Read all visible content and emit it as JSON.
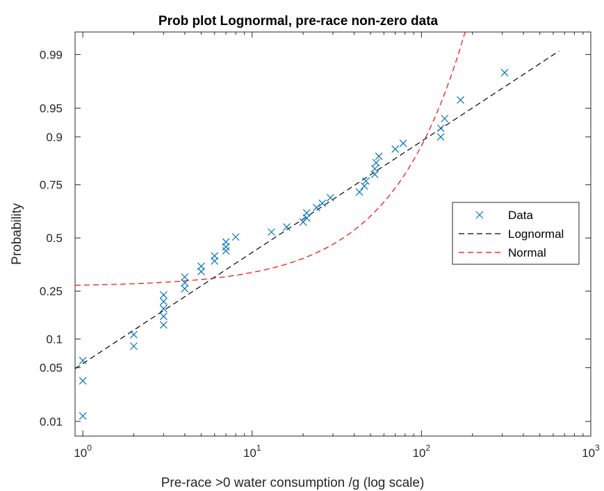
{
  "chart_data": {
    "type": "scatter",
    "title": "Prob plot Lognormal, pre-race non-zero data",
    "xlabel": "Pre-race >0 water consumption /g (log scale)",
    "ylabel": "Probability",
    "x_scale": "log",
    "y_scale": "normal-probability",
    "xlim": [
      0.9,
      1000
    ],
    "ylim": [
      0.006,
      0.9955
    ],
    "x_ticks": [
      {
        "value": 1,
        "base": "10",
        "exp": "0"
      },
      {
        "value": 10,
        "base": "10",
        "exp": "1"
      },
      {
        "value": 100,
        "base": "10",
        "exp": "2"
      },
      {
        "value": 1000,
        "base": "10",
        "exp": "3"
      }
    ],
    "y_ticks": [
      {
        "value": 0.01,
        "label": "0.01"
      },
      {
        "value": 0.05,
        "label": "0.05"
      },
      {
        "value": 0.1,
        "label": "0.1"
      },
      {
        "value": 0.25,
        "label": "0.25"
      },
      {
        "value": 0.5,
        "label": "0.5"
      },
      {
        "value": 0.75,
        "label": "0.75"
      },
      {
        "value": 0.9,
        "label": "0.9"
      },
      {
        "value": 0.95,
        "label": "0.95"
      },
      {
        "value": 0.99,
        "label": "0.99"
      }
    ],
    "grid": false,
    "legend_position": "right",
    "colors": {
      "data": "#0072BD",
      "lognormal": "#000000",
      "normal": "#FF0000"
    },
    "series": [
      {
        "name": "Data",
        "kind": "markers",
        "marker": "x",
        "points": [
          {
            "x": 1,
            "y": 0.012
          },
          {
            "x": 1,
            "y": 0.035
          },
          {
            "x": 1,
            "y": 0.06
          },
          {
            "x": 2,
            "y": 0.085
          },
          {
            "x": 2,
            "y": 0.11
          },
          {
            "x": 3,
            "y": 0.135
          },
          {
            "x": 3,
            "y": 0.16
          },
          {
            "x": 3,
            "y": 0.185
          },
          {
            "x": 3,
            "y": 0.21
          },
          {
            "x": 3,
            "y": 0.235
          },
          {
            "x": 4,
            "y": 0.26
          },
          {
            "x": 4,
            "y": 0.285
          },
          {
            "x": 4,
            "y": 0.31
          },
          {
            "x": 5,
            "y": 0.335
          },
          {
            "x": 5,
            "y": 0.36
          },
          {
            "x": 6,
            "y": 0.385
          },
          {
            "x": 6,
            "y": 0.41
          },
          {
            "x": 7,
            "y": 0.435
          },
          {
            "x": 7,
            "y": 0.455
          },
          {
            "x": 7,
            "y": 0.48
          },
          {
            "x": 8,
            "y": 0.505
          },
          {
            "x": 13,
            "y": 0.53
          },
          {
            "x": 16,
            "y": 0.555
          },
          {
            "x": 20,
            "y": 0.58
          },
          {
            "x": 21,
            "y": 0.6
          },
          {
            "x": 21,
            "y": 0.625
          },
          {
            "x": 24,
            "y": 0.65
          },
          {
            "x": 26,
            "y": 0.67
          },
          {
            "x": 29,
            "y": 0.695
          },
          {
            "x": 43,
            "y": 0.72
          },
          {
            "x": 46,
            "y": 0.745
          },
          {
            "x": 47,
            "y": 0.765
          },
          {
            "x": 53,
            "y": 0.79
          },
          {
            "x": 53,
            "y": 0.81
          },
          {
            "x": 54,
            "y": 0.83
          },
          {
            "x": 56,
            "y": 0.85
          },
          {
            "x": 70,
            "y": 0.87
          },
          {
            "x": 78,
            "y": 0.885
          },
          {
            "x": 130,
            "y": 0.9
          },
          {
            "x": 130,
            "y": 0.918
          },
          {
            "x": 137,
            "y": 0.935
          },
          {
            "x": 170,
            "y": 0.96
          },
          {
            "x": 310,
            "y": 0.982
          }
        ]
      },
      {
        "name": "Lognormal",
        "kind": "line",
        "dash": "dashed",
        "mu": 2.603,
        "sigma": 1.634,
        "x_range": [
          0.9,
          650
        ]
      },
      {
        "name": "Normal",
        "kind": "line",
        "dash": "dashed",
        "mean": 34.5,
        "sd": 56.0,
        "x_range": [
          0.9,
          200
        ]
      }
    ]
  }
}
